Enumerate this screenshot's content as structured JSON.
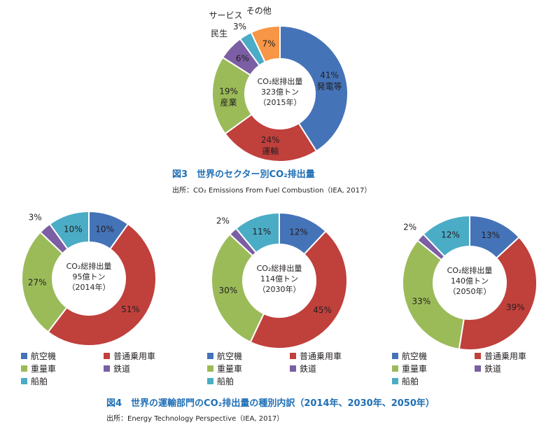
{
  "colors": {
    "blue": "#4573b8",
    "red": "#c0403c",
    "green": "#9bbb59",
    "purple": "#7b5ea3",
    "teal": "#4bacc6",
    "orange": "#f79646"
  },
  "fig3": {
    "title": "図3　世界のセクター別CO₂排出量",
    "source": "出所：CO₂ Emissions From Fuel Combustion（IEA, 2017）"
  },
  "fig4": {
    "title": "図4　世界の運輸部門のCO₂排出量の種別内訳（2014年、2030年、2050年）",
    "source": "出所：Energy Technology Perspective（IEA, 2017）"
  },
  "legend": {
    "items": [
      "航空機",
      "普通乗用車",
      "重量車",
      "鉄道",
      "船舶"
    ]
  },
  "chart_data": [
    {
      "type": "pie",
      "title": "図3　世界のセクター別CO₂排出量",
      "center_lines": [
        "CO₂総排出量",
        "323億トン",
        "（2015年）"
      ],
      "slices": [
        {
          "label": "発電等",
          "value": 41,
          "display": "41%",
          "color": "#4573b8"
        },
        {
          "label": "運輸",
          "value": 24,
          "display": "24%",
          "color": "#c0403c"
        },
        {
          "label": "産業",
          "value": 19,
          "display": "19%",
          "color": "#9bbb59"
        },
        {
          "label": "民生",
          "value": 6,
          "display": "6%",
          "color": "#7b5ea3"
        },
        {
          "label": "サービス",
          "value": 3,
          "display": "3%",
          "color": "#4bacc6"
        },
        {
          "label": "その他",
          "value": 7,
          "display": "7%",
          "color": "#f79646"
        }
      ]
    },
    {
      "type": "pie",
      "center_lines": [
        "CO₂総排出量",
        "95億トン",
        "（2014年）"
      ],
      "slices": [
        {
          "label": "航空機",
          "value": 10,
          "display": "10%",
          "color": "#4573b8"
        },
        {
          "label": "普通乗用車",
          "value": 51,
          "display": "51%",
          "color": "#c0403c"
        },
        {
          "label": "重量車",
          "value": 27,
          "display": "27%",
          "color": "#9bbb59"
        },
        {
          "label": "鉄道",
          "value": 3,
          "display": "3%",
          "color": "#7b5ea3"
        },
        {
          "label": "船舶",
          "value": 10,
          "display": "10%",
          "color": "#4bacc6"
        }
      ]
    },
    {
      "type": "pie",
      "center_lines": [
        "CO₂総排出量",
        "114億トン",
        "（2030年）"
      ],
      "slices": [
        {
          "label": "航空機",
          "value": 12,
          "display": "12%",
          "color": "#4573b8"
        },
        {
          "label": "普通乗用車",
          "value": 45,
          "display": "45%",
          "color": "#c0403c"
        },
        {
          "label": "重量車",
          "value": 30,
          "display": "30%",
          "color": "#9bbb59"
        },
        {
          "label": "鉄道",
          "value": 2,
          "display": "2%",
          "color": "#7b5ea3"
        },
        {
          "label": "船舶",
          "value": 11,
          "display": "11%",
          "color": "#4bacc6"
        }
      ]
    },
    {
      "type": "pie",
      "center_lines": [
        "CO₂総排出量",
        "140億トン",
        "（2050年）"
      ],
      "slices": [
        {
          "label": "航空機",
          "value": 13,
          "display": "13%",
          "color": "#4573b8"
        },
        {
          "label": "普通乗用車",
          "value": 39,
          "display": "39%",
          "color": "#c0403c"
        },
        {
          "label": "重量車",
          "value": 33,
          "display": "33%",
          "color": "#9bbb59"
        },
        {
          "label": "鉄道",
          "value": 2,
          "display": "2%",
          "color": "#7b5ea3"
        },
        {
          "label": "船舶",
          "value": 12,
          "display": "12%",
          "color": "#4bacc6"
        }
      ]
    }
  ]
}
